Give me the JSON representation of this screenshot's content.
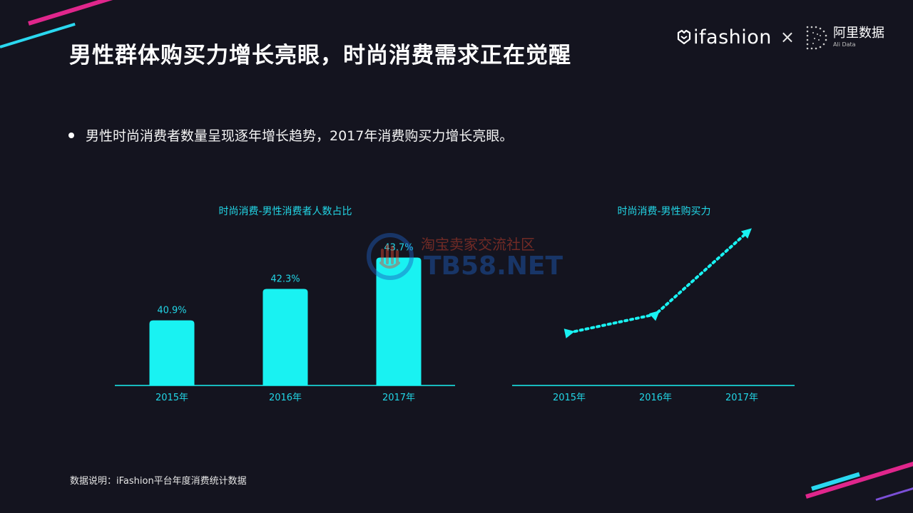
{
  "header": {
    "title": "男性群体购买力增长亮眼，时尚消费需求正在觉醒"
  },
  "logos": {
    "ifashion_text": "ifashion",
    "times_sign": "×",
    "alidata_cn": "阿里数据",
    "alidata_en": "Ali Data"
  },
  "bullet_text": "男性时尚消费者数量呈现逐年增长趋势，2017年消费购买力增长亮眼。",
  "colors": {
    "accent": "#19f2f2",
    "accent_text": "#22d6e6",
    "pink": "#e0268c",
    "background": "#14141f"
  },
  "chart_data": [
    {
      "type": "bar",
      "title": "时尚消费-男性消费者人数占比",
      "categories": [
        "2015年",
        "2016年",
        "2017年"
      ],
      "values": [
        40.9,
        42.3,
        43.7
      ],
      "value_labels": [
        "40.9%",
        "42.3%",
        "43.7%"
      ],
      "ylim": [
        38,
        44
      ],
      "grid": false
    },
    {
      "type": "line",
      "title": "时尚消费-男性购买力",
      "categories": [
        "2015年",
        "2016年",
        "2017年"
      ],
      "values": [
        1.0,
        1.4,
        3.2
      ],
      "line_style": "dotted",
      "marker": "triangle",
      "grid": false
    }
  ],
  "watermark": {
    "cn": "淘宝卖家交流社区",
    "en": "TB58.NET"
  },
  "footnote": "数据说明：iFashion平台年度消费统计数据"
}
